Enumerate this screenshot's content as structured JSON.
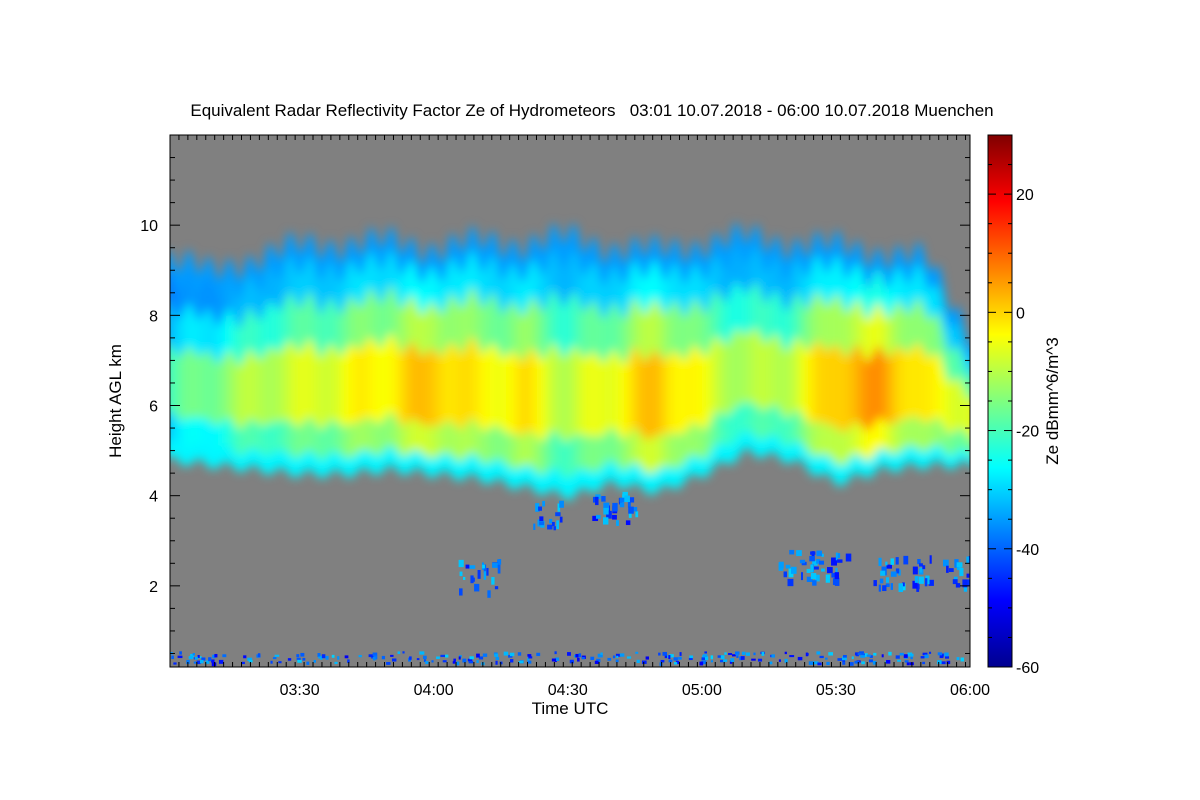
{
  "chart_data": {
    "type": "heatmap",
    "title": "Equivalent Radar Reflectivity Factor Ze of Hydrometeors   03:01 10.07.2018 - 06:00 10.07.2018 Muenchen",
    "xlabel": "Time UTC",
    "ylabel": "Height AGL km",
    "xlim": [
      "03:01",
      "06:00"
    ],
    "ylim": [
      0.2,
      12
    ],
    "x_ticks": [
      "03:30",
      "04:00",
      "04:30",
      "05:00",
      "05:30",
      "06:00"
    ],
    "y_ticks": [
      2,
      4,
      6,
      8,
      10
    ],
    "background_color": "#808080",
    "colorbar": {
      "label": "Ze dBmm^6/m^3",
      "range": [
        -60,
        30
      ],
      "ticks": [
        -60,
        -40,
        -20,
        0,
        20
      ],
      "colormap": "jet"
    },
    "series": [
      {
        "name": "",
        "kind": "cloud-top-height-km",
        "x": [
          "03:01",
          "03:10",
          "03:20",
          "03:30",
          "03:40",
          "03:50",
          "04:00",
          "04:10",
          "04:20",
          "04:30",
          "04:40",
          "04:50",
          "05:00",
          "05:10",
          "05:20",
          "05:30",
          "05:40",
          "05:50",
          "06:00"
        ],
        "values": [
          9.3,
          8.9,
          9.3,
          9.5,
          9.6,
          9.6,
          9.5,
          9.6,
          9.6,
          9.7,
          9.5,
          9.4,
          9.6,
          9.7,
          9.6,
          9.5,
          9.4,
          9.2,
          7.6
        ]
      },
      {
        "name": "",
        "kind": "cloud-base-height-km",
        "x": [
          "03:01",
          "03:10",
          "03:20",
          "03:30",
          "03:40",
          "03:50",
          "04:00",
          "04:10",
          "04:20",
          "04:30",
          "04:40",
          "04:50",
          "05:00",
          "05:10",
          "05:20",
          "05:30",
          "05:40",
          "05:50",
          "06:00"
        ],
        "values": [
          4.8,
          4.7,
          4.6,
          4.5,
          4.5,
          4.6,
          4.5,
          4.4,
          4.2,
          4.0,
          4.3,
          4.1,
          4.5,
          5.0,
          4.8,
          4.3,
          4.6,
          4.7,
          4.7
        ]
      },
      {
        "name": "",
        "kind": "peak-reflectivity-dbz",
        "x": [
          "03:01",
          "03:10",
          "03:20",
          "03:30",
          "03:40",
          "03:50",
          "04:00",
          "04:10",
          "04:20",
          "04:30",
          "04:40",
          "04:50",
          "05:00",
          "05:10",
          "05:20",
          "05:30",
          "05:40",
          "05:50",
          "06:00"
        ],
        "values": [
          -20,
          -15,
          -10,
          -8,
          -5,
          -2,
          2,
          -4,
          -2,
          -10,
          -4,
          2,
          -6,
          -12,
          -8,
          2,
          5,
          -4,
          -6
        ]
      }
    ]
  }
}
